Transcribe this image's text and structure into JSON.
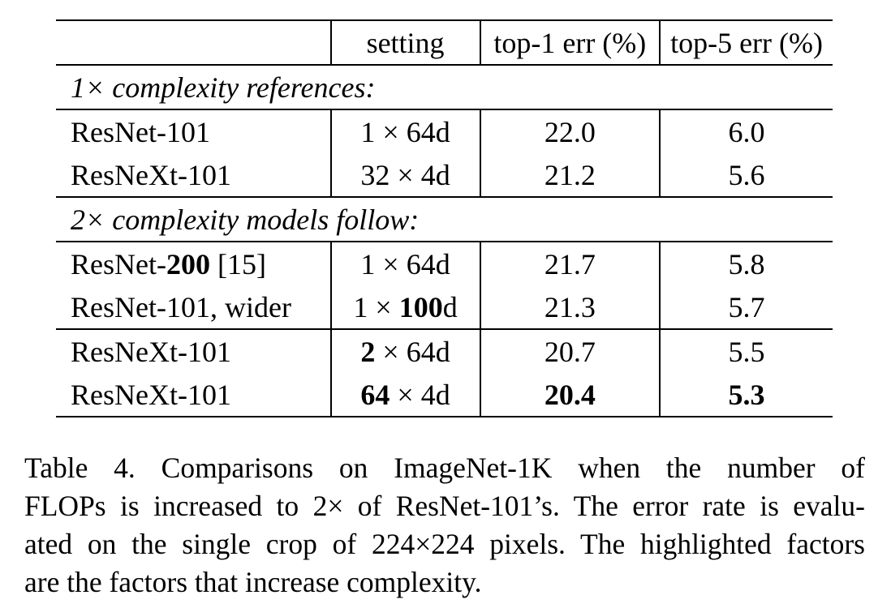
{
  "table": {
    "headers": {
      "model": "",
      "setting": "setting",
      "top1": "top-1 err (%)",
      "top5": "top-5 err (%)"
    },
    "groups": [
      {
        "label": "1× complexity references:",
        "rows": [
          {
            "model": "ResNet-101",
            "setting_a": "1",
            "setting_sep": " × ",
            "setting_b": "64d",
            "top1": "22.0",
            "top5": "6.0"
          },
          {
            "model": "ResNeXt-101",
            "setting_a": "32",
            "setting_sep": " × ",
            "setting_b": "4d",
            "top1": "21.2",
            "top5": "5.6"
          }
        ]
      },
      {
        "label": "2× complexity models follow:",
        "rows": [
          {
            "model_prefix": "ResNet-",
            "model_bold": "200",
            "model_suffix": " [15]",
            "setting_a": "1",
            "setting_sep": " × ",
            "setting_b": "64d",
            "top1": "21.7",
            "top5": "5.8"
          },
          {
            "model": "ResNet-101, wider",
            "setting_a": "1",
            "setting_sep": " × ",
            "setting_b_bold": "100",
            "setting_b_rest": "d",
            "top1": "21.3",
            "top5": "5.7"
          },
          {
            "model": "ResNeXt-101",
            "setting_a_bold": "2",
            "setting_sep": " × ",
            "setting_b": "64d",
            "top1": "20.7",
            "top5": "5.5"
          },
          {
            "model": "ResNeXt-101",
            "setting_a_bold": "64",
            "setting_sep": " × ",
            "setting_b": "4d",
            "top1": "20.4",
            "top5": "5.3"
          }
        ]
      }
    ]
  },
  "caption": {
    "lines": [
      "Table 4. Comparisons on ImageNet-1K when the number of",
      "FLOPs is increased to 2× of ResNet-101’s. The error rate is evalu-",
      "ated on the single crop of 224×224 pixels. The highlighted factors",
      "are the factors that increase complexity."
    ]
  }
}
